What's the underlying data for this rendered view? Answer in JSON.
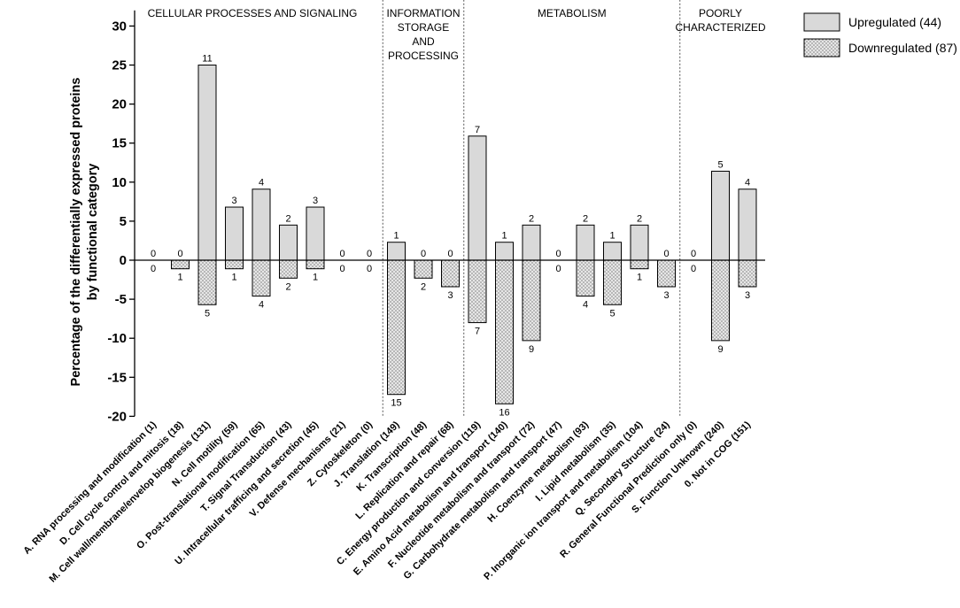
{
  "chart_data": {
    "type": "bar",
    "title": "",
    "xlabel": "",
    "ylabel": {
      "line1": "Percentage of the differentially expressed proteins",
      "line2": "by functional category"
    },
    "ylim": [
      -20,
      32
    ],
    "yticks": [
      30,
      25,
      20,
      15,
      10,
      5,
      0,
      -5,
      -10,
      -15,
      -20
    ],
    "grid": false,
    "legend_position": "top-right",
    "categories": [
      "A. RNA processing and modification (1)",
      "D. Cell cycle control and mitosis (18)",
      "M. Cell wall/membrane/envelop biogenesis (131)",
      "N. Cell motility (59)",
      "O. Post-translational modification (65)",
      "T. Signal Transduction (43)",
      "U. Intracellular trafficing and secretion (45)",
      "V. Defense mechanisms (21)",
      "Z. Cytoskeleton (0)",
      "J. Translation (149)",
      "K. Transcription (48)",
      "L. Replication and repair (68)",
      "C. Energy production and conversion (119)",
      "E. Amino Acid metabolism and transport (140)",
      "F. Nucleotide metabolism and transport (72)",
      "G. Carbohydrate metabolism and transport (47)",
      "H. Coenzyme metabolism (93)",
      "I. Lipid metabolism (35)",
      "P. Inorganic ion transport and metabolism (104)",
      "Q. Secondary Structure (24)",
      "R. General Functional Prediction only (0)",
      "S. Function Unknown (240)",
      "0. Not in COG (151)"
    ],
    "series": [
      {
        "name": "Upregulated (44)",
        "values": [
          0,
          0,
          25.0,
          6.8,
          9.1,
          4.5,
          6.8,
          0,
          0,
          2.3,
          0,
          0,
          15.9,
          2.3,
          4.5,
          0,
          4.5,
          2.3,
          4.5,
          0,
          0,
          11.4,
          9.1
        ],
        "counts": [
          "0",
          "0",
          "11",
          "3",
          "4",
          "2",
          "3",
          "0",
          "0",
          "1",
          "0",
          "0",
          "7",
          "1",
          "2",
          "0",
          "2",
          "1",
          "2",
          "0",
          "0",
          "5",
          "4"
        ]
      },
      {
        "name": "Downregulated (87)",
        "values": [
          0,
          -1.1,
          -5.7,
          -1.1,
          -4.6,
          -2.3,
          -1.1,
          0,
          0,
          -17.2,
          -2.3,
          -3.4,
          -8.0,
          -18.4,
          -10.3,
          0,
          -4.6,
          -5.7,
          -1.1,
          -3.4,
          0,
          -10.3,
          -3.4
        ],
        "counts": [
          "0",
          "1",
          "5",
          "1",
          "4",
          "2",
          "1",
          "0",
          "0",
          "15",
          "2",
          "3",
          "7",
          "16",
          "9",
          "0",
          "4",
          "5",
          "1",
          "3",
          "0",
          "9",
          "3"
        ]
      }
    ],
    "sections": [
      {
        "lines": [
          "CELLULAR PROCESSES AND SIGNALING"
        ],
        "start": 0,
        "end": 8
      },
      {
        "lines": [
          "INFORMATION",
          "STORAGE",
          "AND",
          "PROCESSING"
        ],
        "start": 9,
        "end": 11
      },
      {
        "lines": [
          "METABOLISM"
        ],
        "start": 12,
        "end": 19
      },
      {
        "lines": [
          "POORLY",
          "CHARACTERIZED"
        ],
        "start": 20,
        "end": 22
      }
    ]
  },
  "legend": [
    {
      "label": "Upregulated (44)",
      "color": "#d9d9d9",
      "pattern": "solid"
    },
    {
      "label": "Downregulated (87)",
      "color": "#e6e6e6",
      "pattern": "dotted"
    }
  ],
  "colors": {
    "up_fill": "#d9d9d9",
    "down_fill": "#e6e6e6",
    "dot": "#555555",
    "axis": "#000000"
  }
}
